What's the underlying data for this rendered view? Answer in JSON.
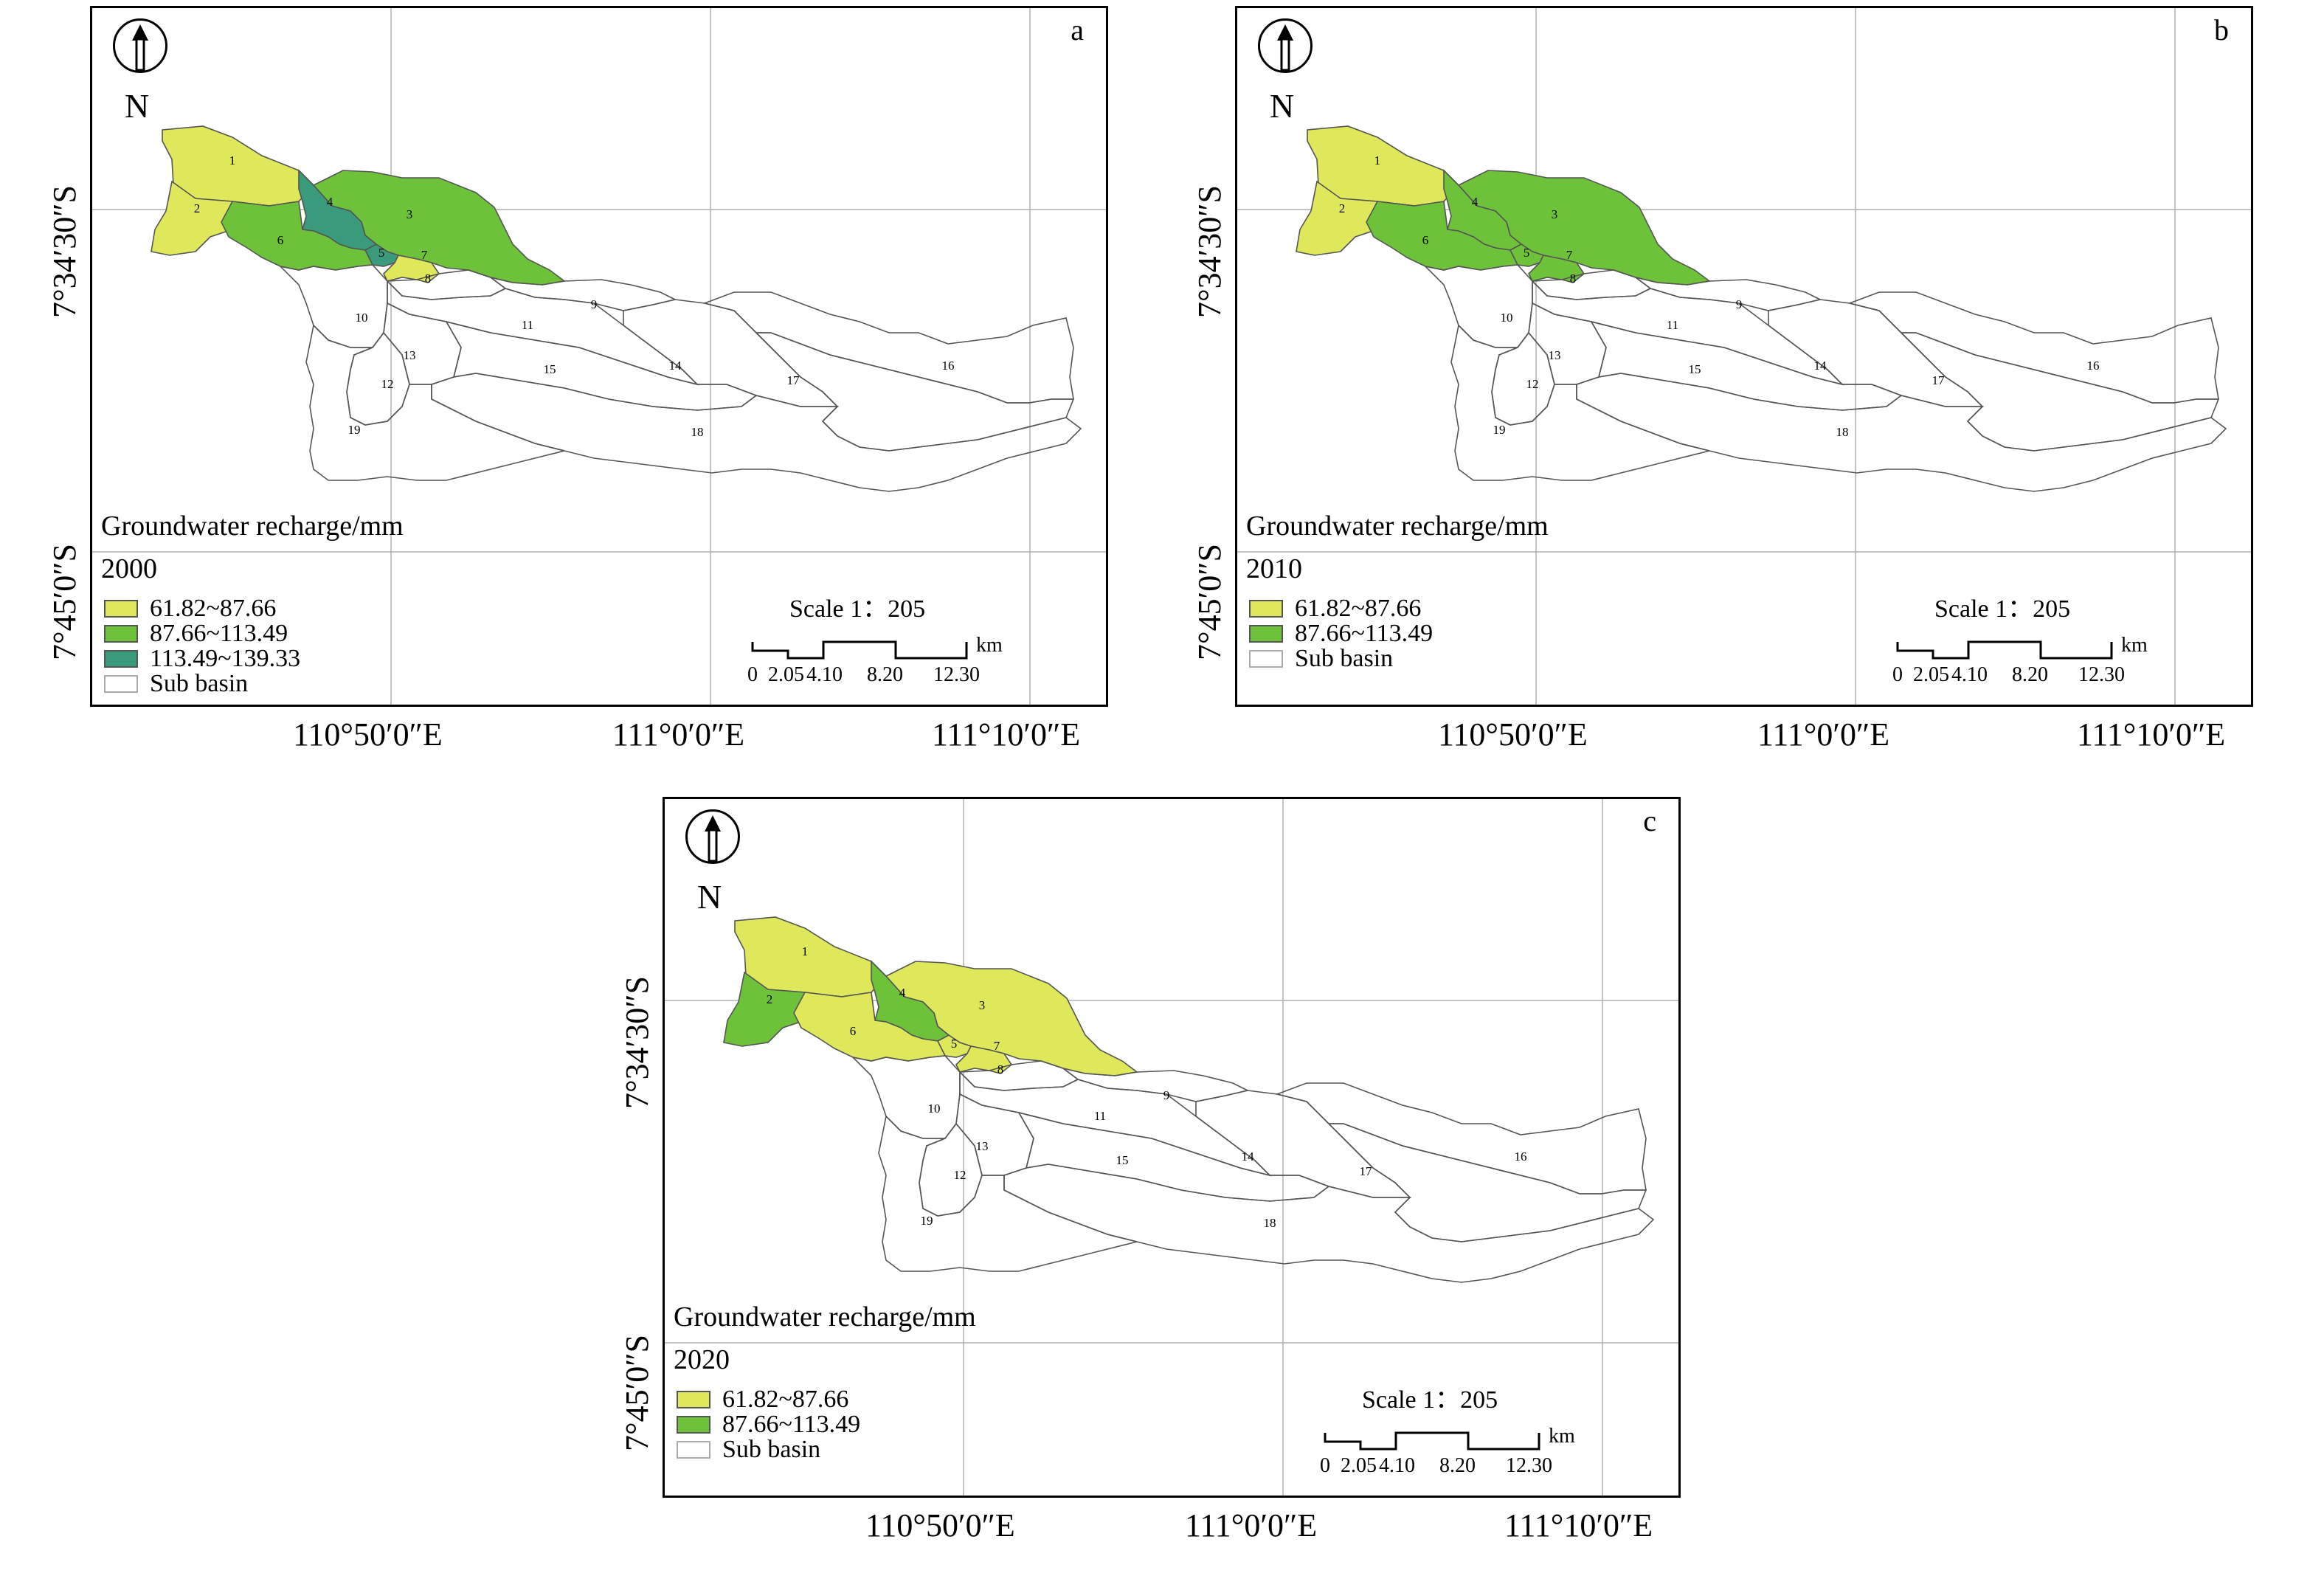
{
  "colors": {
    "yellow": "#dfe85a",
    "green": "#6dc23a",
    "teal": "#3a9a7c",
    "outline": "#555555"
  },
  "common": {
    "north": "N",
    "lat_labels": [
      "7°34′30″S",
      "7°45′0″S"
    ],
    "lon_labels": [
      "110°50′0″E",
      "111°0′0″E",
      "111°10′0″E"
    ],
    "legend_title": "Groundwater recharge/mm",
    "scale_label": "Scale 1：205",
    "scale_unit": "km",
    "scale_ticks": [
      "0",
      "2.05",
      "4.10",
      "8.20",
      "12.30"
    ],
    "sub_basin_label": "Sub basin",
    "basin_numbers": [
      "1",
      "2",
      "3",
      "4",
      "5",
      "6",
      "7",
      "8",
      "9",
      "10",
      "11",
      "12",
      "13",
      "14",
      "15",
      "16",
      "17",
      "18",
      "19"
    ]
  },
  "panels": [
    {
      "letter": "a",
      "year": "2000",
      "legend": [
        {
          "label": "61.82~87.66",
          "color": "yellow"
        },
        {
          "label": "87.66~113.49",
          "color": "green"
        },
        {
          "label": "113.49~139.33",
          "color": "teal"
        },
        {
          "label": "Sub basin",
          "color": "none"
        }
      ],
      "basin_class": {
        "1": "yellow",
        "2": "yellow",
        "3": "green",
        "4": "teal",
        "5": "teal",
        "6": "green",
        "7": "yellow"
      }
    },
    {
      "letter": "b",
      "year": "2010",
      "legend": [
        {
          "label": "61.82~87.66",
          "color": "yellow"
        },
        {
          "label": "87.66~113.49",
          "color": "green"
        },
        {
          "label": "Sub basin",
          "color": "none"
        }
      ],
      "basin_class": {
        "1": "yellow",
        "2": "yellow",
        "3": "green",
        "4": "green",
        "5": "green",
        "6": "green",
        "7": "green"
      }
    },
    {
      "letter": "c",
      "year": "2020",
      "legend": [
        {
          "label": "61.82~87.66",
          "color": "yellow"
        },
        {
          "label": "87.66~113.49",
          "color": "green"
        },
        {
          "label": "Sub basin",
          "color": "none"
        }
      ],
      "basin_class": {
        "1": "yellow",
        "2": "green",
        "3": "yellow",
        "4": "green",
        "5": "yellow",
        "6": "yellow",
        "7": "yellow"
      }
    }
  ]
}
